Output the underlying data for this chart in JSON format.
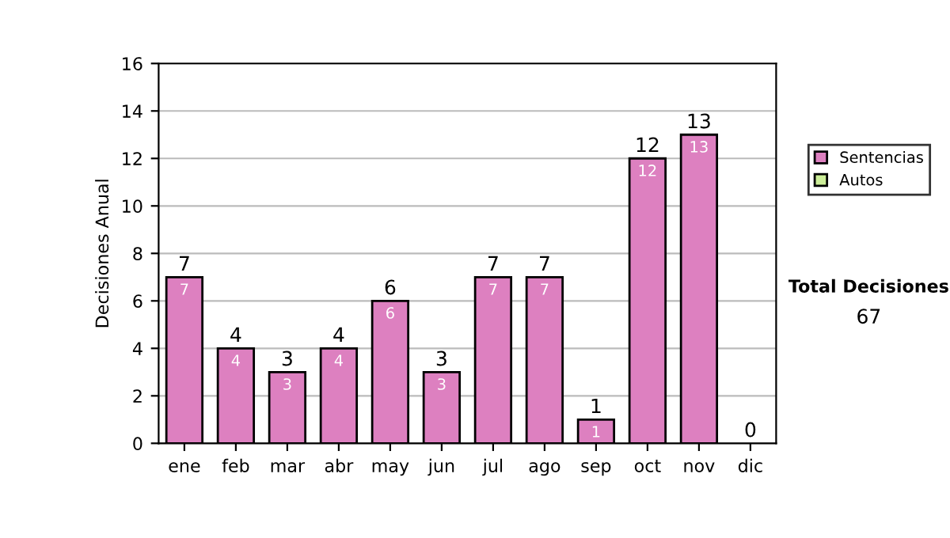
{
  "chart_data": {
    "type": "bar",
    "stacked": true,
    "ylabel": "Decisiones Anual",
    "categories": [
      "ene",
      "feb",
      "mar",
      "abr",
      "may",
      "jun",
      "jul",
      "ago",
      "sep",
      "oct",
      "nov",
      "dic"
    ],
    "series": [
      {
        "name": "Sentencias",
        "color": "#dd80c0",
        "values": [
          7,
          4,
          3,
          4,
          6,
          3,
          7,
          7,
          1,
          12,
          13,
          0
        ],
        "value_labels": [
          "7",
          "4",
          "3",
          "4",
          "6",
          "3",
          "7",
          "7",
          "1",
          "12",
          "13",
          null
        ]
      },
      {
        "name": "Autos",
        "color": "#ccee99",
        "values": [
          0,
          0,
          0,
          0,
          0,
          0,
          0,
          0,
          0,
          0,
          0,
          0
        ]
      }
    ],
    "totals": [
      "7",
      "4",
      "3",
      "4",
      "6",
      "3",
      "7",
      "7",
      "1",
      "12",
      "13",
      "0"
    ],
    "ylim": [
      0,
      16
    ],
    "yticks": [
      0,
      2,
      4,
      6,
      8,
      10,
      12,
      14,
      16
    ],
    "grid": "y",
    "legend": "right",
    "annotations": [
      "Total Decisiones",
      "67"
    ]
  }
}
